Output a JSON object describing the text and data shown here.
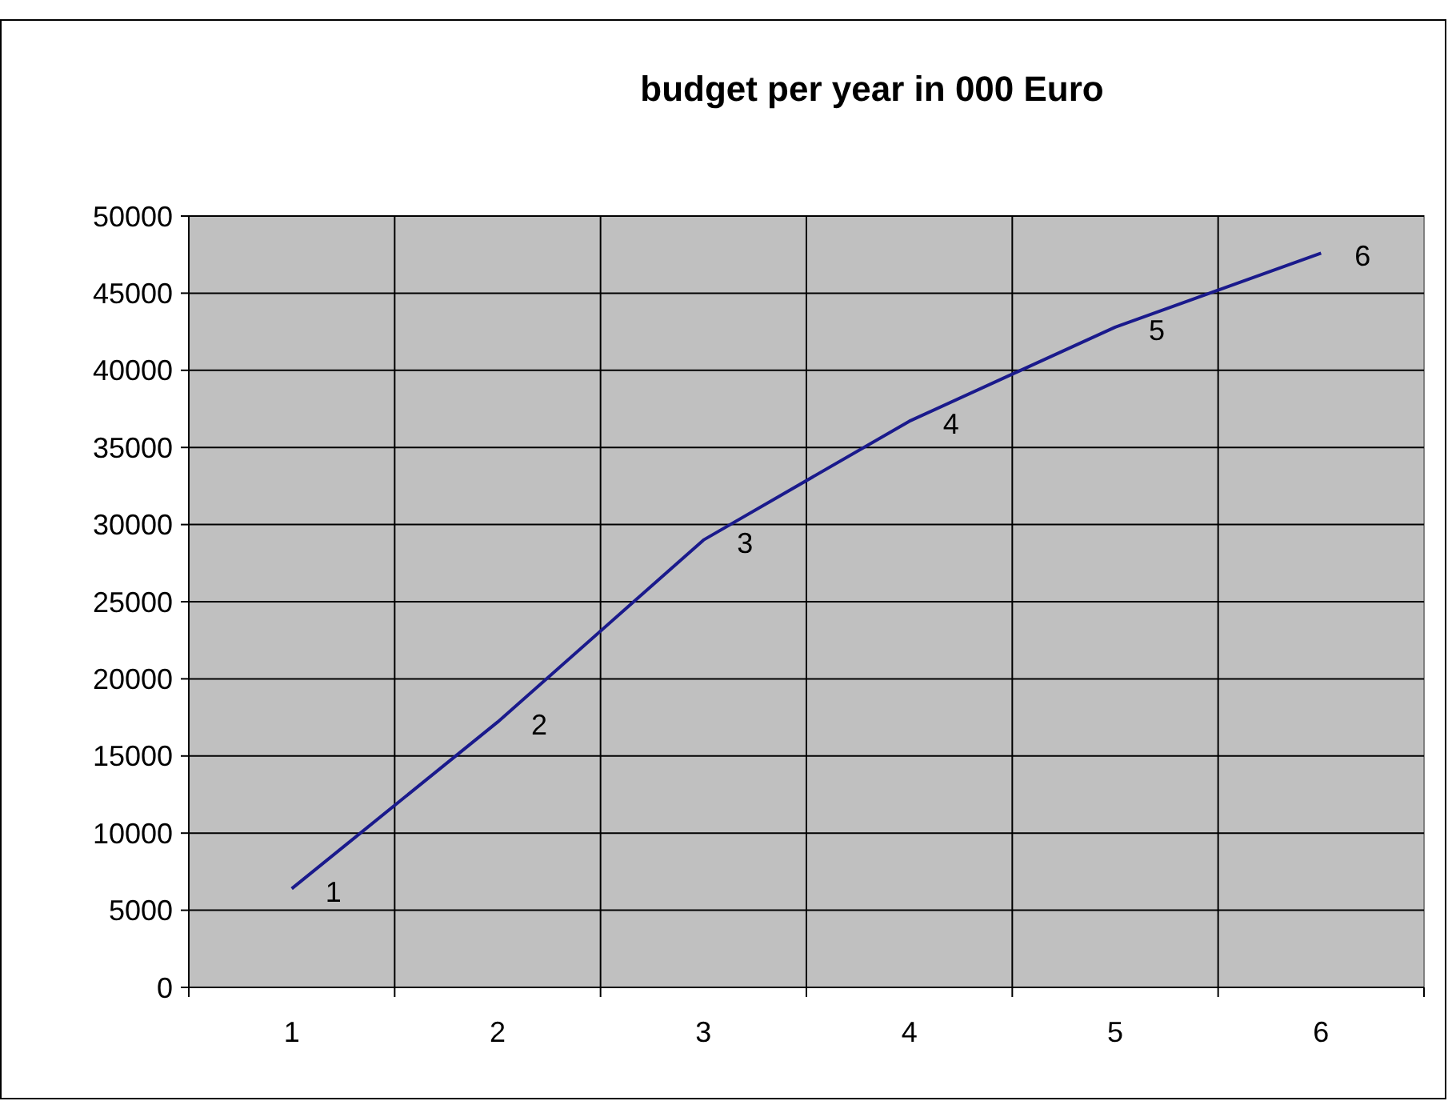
{
  "chart_data": {
    "type": "line",
    "title": "budget per year in 000 Euro",
    "categories": [
      "1",
      "2",
      "3",
      "4",
      "5",
      "6"
    ],
    "series": [
      {
        "color": "#1a1a8c",
        "values": [
          6400,
          17200,
          29000,
          36700,
          42800,
          47600
        ]
      }
    ],
    "annotations": [
      {
        "text": "1",
        "x": "1",
        "y": 6400
      },
      {
        "text": "2",
        "x": "2",
        "y": 17200
      },
      {
        "text": "3",
        "x": "3",
        "y": 29000
      },
      {
        "text": "4",
        "x": "4",
        "y": 36700
      },
      {
        "text": "5",
        "x": "5",
        "y": 42800
      },
      {
        "text": "6",
        "x": "6",
        "y": 47600
      }
    ],
    "ylim": [
      0,
      50000
    ],
    "yticks": [
      0,
      5000,
      10000,
      15000,
      20000,
      25000,
      30000,
      35000,
      40000,
      45000,
      50000
    ],
    "grid": true,
    "marker": "none",
    "line_style": "solid"
  }
}
